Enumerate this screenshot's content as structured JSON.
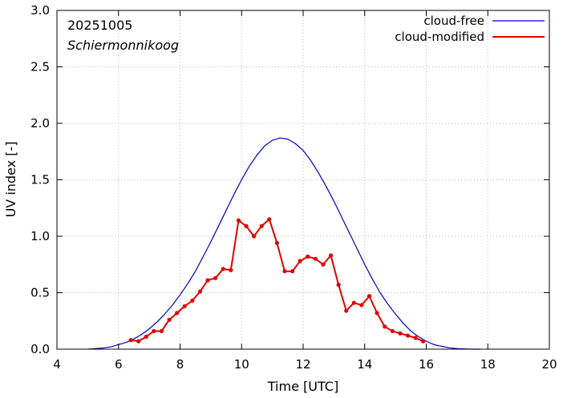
{
  "chart_data": {
    "type": "line",
    "annotations": {
      "date": "20251005",
      "location": "Schiermonnikoog"
    },
    "xlabel": "Time  [UTC]",
    "ylabel": "UV index  [-]",
    "xlim": [
      4,
      20
    ],
    "ylim": [
      0,
      3.0
    ],
    "xticks": [
      4,
      6,
      8,
      10,
      12,
      14,
      16,
      18,
      20
    ],
    "yticks": [
      0.0,
      0.5,
      1.0,
      1.5,
      2.0,
      2.5,
      3.0
    ],
    "xtick_labels": [
      "4",
      "6",
      "8",
      "10",
      "12",
      "14",
      "16",
      "18",
      "20"
    ],
    "ytick_labels": [
      "0.0",
      "0.5",
      "1.0",
      "1.5",
      "2.0",
      "2.5",
      "3.0"
    ],
    "grid": true,
    "legend": "top-right",
    "series": [
      {
        "name": "cloud-free",
        "color": "#0000cc",
        "markers": false,
        "x": [
          5.0,
          5.25,
          5.5,
          5.75,
          6.0,
          6.25,
          6.5,
          6.75,
          7.0,
          7.25,
          7.5,
          7.75,
          8.0,
          8.25,
          8.5,
          8.75,
          9.0,
          9.25,
          9.5,
          9.75,
          10.0,
          10.25,
          10.5,
          10.75,
          11.0,
          11.25,
          11.5,
          11.75,
          12.0,
          12.25,
          12.5,
          12.75,
          13.0,
          13.25,
          13.5,
          13.75,
          14.0,
          14.25,
          14.5,
          14.75,
          15.0,
          15.25,
          15.5,
          15.75,
          16.0,
          16.25,
          16.5,
          16.75,
          17.0,
          17.25,
          17.5,
          17.75
        ],
        "y": [
          0.0,
          0.005,
          0.01,
          0.02,
          0.04,
          0.06,
          0.09,
          0.13,
          0.18,
          0.24,
          0.31,
          0.39,
          0.48,
          0.58,
          0.69,
          0.82,
          0.95,
          1.09,
          1.23,
          1.37,
          1.5,
          1.62,
          1.72,
          1.8,
          1.85,
          1.87,
          1.86,
          1.82,
          1.76,
          1.67,
          1.56,
          1.44,
          1.31,
          1.17,
          1.03,
          0.89,
          0.75,
          0.62,
          0.5,
          0.4,
          0.31,
          0.23,
          0.16,
          0.11,
          0.07,
          0.04,
          0.025,
          0.012,
          0.005,
          0.002,
          0.0,
          0.0
        ]
      },
      {
        "name": "cloud-modified",
        "color": "#e00000",
        "markers": true,
        "x": [
          6.4,
          6.65,
          6.9,
          7.15,
          7.4,
          7.65,
          7.9,
          8.15,
          8.4,
          8.65,
          8.9,
          9.15,
          9.4,
          9.65,
          9.9,
          10.15,
          10.4,
          10.65,
          10.9,
          11.15,
          11.4,
          11.65,
          11.9,
          12.15,
          12.4,
          12.65,
          12.9,
          13.15,
          13.4,
          13.65,
          13.9,
          14.15,
          14.4,
          14.65,
          14.9,
          15.15,
          15.4,
          15.65,
          15.9
        ],
        "y": [
          0.08,
          0.07,
          0.11,
          0.16,
          0.16,
          0.26,
          0.32,
          0.38,
          0.43,
          0.51,
          0.61,
          0.63,
          0.71,
          0.7,
          1.14,
          1.09,
          1.0,
          1.09,
          1.15,
          0.94,
          0.69,
          0.69,
          0.78,
          0.82,
          0.8,
          0.75,
          0.83,
          0.57,
          0.34,
          0.41,
          0.39,
          0.47,
          0.32,
          0.2,
          0.16,
          0.14,
          0.12,
          0.1,
          0.07
        ]
      }
    ]
  }
}
